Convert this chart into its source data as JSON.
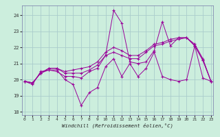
{
  "xlabel": "Windchill (Refroidissement éolien,°C)",
  "bg_color": "#cceedd",
  "grid_color": "#aacccc",
  "line_color": "#990099",
  "spine_color": "#7777aa",
  "xlim": [
    -0.3,
    23.3
  ],
  "ylim": [
    17.8,
    24.6
  ],
  "yticks": [
    18,
    19,
    20,
    21,
    22,
    23,
    24
  ],
  "xticks": [
    0,
    1,
    2,
    3,
    4,
    5,
    6,
    7,
    8,
    9,
    10,
    11,
    12,
    13,
    14,
    15,
    16,
    17,
    18,
    19,
    20,
    21,
    22,
    23
  ],
  "series": [
    [
      19.9,
      19.7,
      20.5,
      20.6,
      20.6,
      20.0,
      19.7,
      18.4,
      19.2,
      19.5,
      20.8,
      21.3,
      20.2,
      21.0,
      20.2,
      20.7,
      21.7,
      20.2,
      20.0,
      19.9,
      20.0,
      22.1,
      20.1,
      19.9
    ],
    [
      19.9,
      19.8,
      20.4,
      20.6,
      20.5,
      20.2,
      20.2,
      20.1,
      20.5,
      20.7,
      21.5,
      24.3,
      23.5,
      21.1,
      21.0,
      21.1,
      21.8,
      23.6,
      22.1,
      22.6,
      22.6,
      22.1,
      21.2,
      19.9
    ],
    [
      19.9,
      19.8,
      20.4,
      20.7,
      20.7,
      20.4,
      20.4,
      20.4,
      20.6,
      20.9,
      21.5,
      21.7,
      21.5,
      21.3,
      21.3,
      21.7,
      22.1,
      22.2,
      22.4,
      22.5,
      22.6,
      22.1,
      21.2,
      19.9
    ],
    [
      19.9,
      19.8,
      20.4,
      20.7,
      20.7,
      20.5,
      20.6,
      20.7,
      20.8,
      21.1,
      21.7,
      22.0,
      21.8,
      21.5,
      21.5,
      21.8,
      22.2,
      22.3,
      22.5,
      22.6,
      22.6,
      22.2,
      21.3,
      19.9
    ]
  ]
}
